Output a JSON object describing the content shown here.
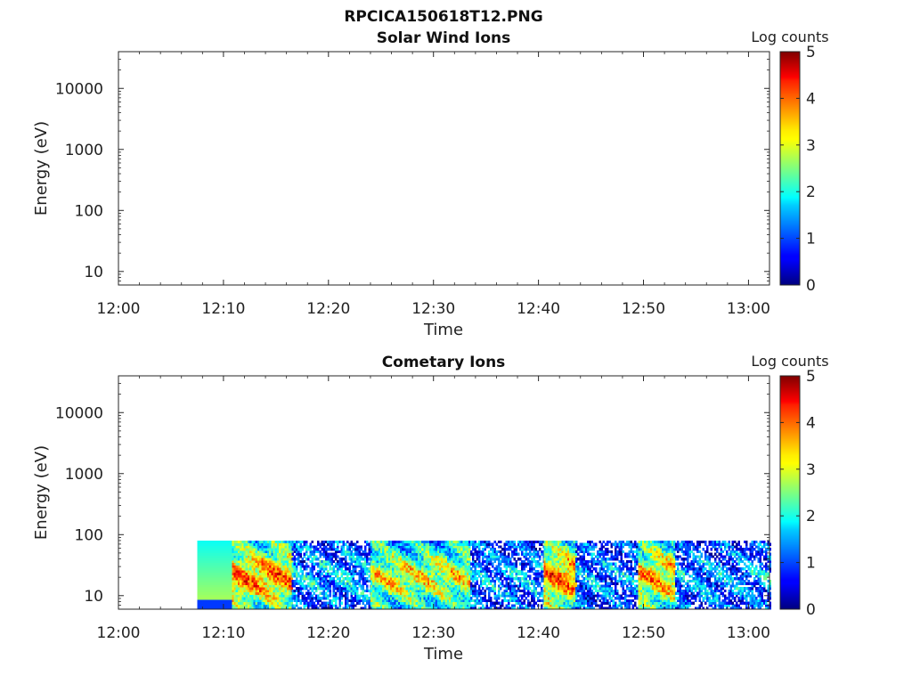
{
  "figure_title": "RPCICA150618T12.PNG",
  "colorbar": {
    "label": "Log counts",
    "ticks": [
      "0",
      "1",
      "2",
      "3",
      "4",
      "5"
    ],
    "range": [
      0,
      5
    ],
    "colormap": "jet"
  },
  "chart_data": [
    {
      "type": "heatmap",
      "title": "Solar Wind Ions",
      "xlabel": "Time",
      "ylabel": "Energy (eV)",
      "x_ticks": [
        "12:00",
        "12:10",
        "12:20",
        "12:30",
        "12:40",
        "12:50",
        "13:00"
      ],
      "y_ticks": [
        "10",
        "100",
        "1000",
        "10000"
      ],
      "y_scale": "log",
      "ylim": [
        6,
        40000
      ],
      "xlim_minutes": [
        0,
        62
      ],
      "data_present": false,
      "segments": []
    },
    {
      "type": "heatmap",
      "title": "Cometary Ions",
      "xlabel": "Time",
      "ylabel": "Energy (eV)",
      "x_ticks": [
        "12:00",
        "12:10",
        "12:20",
        "12:30",
        "12:40",
        "12:50",
        "13:00"
      ],
      "y_ticks": [
        "10",
        "100",
        "1000",
        "10000"
      ],
      "y_scale": "log",
      "ylim": [
        6,
        40000
      ],
      "xlim_minutes": [
        0,
        62
      ],
      "data_present": true,
      "energy_range_eV": [
        6,
        80
      ],
      "data_start_minute": 7.5,
      "data_end_minute": 62,
      "segments": [
        {
          "start": 7.5,
          "end": 10.8,
          "level": 2.6,
          "note_low_band_level": 0.9
        },
        {
          "start": 10.8,
          "end": 16.5,
          "level": 3.4
        },
        {
          "start": 16.5,
          "end": 24.0,
          "level": 1.4
        },
        {
          "start": 24.0,
          "end": 33.5,
          "level": 2.8
        },
        {
          "start": 33.5,
          "end": 40.5,
          "level": 1.3
        },
        {
          "start": 40.5,
          "end": 43.5,
          "level": 3.5
        },
        {
          "start": 43.5,
          "end": 49.5,
          "level": 1.2
        },
        {
          "start": 49.5,
          "end": 53.0,
          "level": 3.2
        },
        {
          "start": 53.0,
          "end": 62.0,
          "level": 1.3
        }
      ]
    }
  ]
}
